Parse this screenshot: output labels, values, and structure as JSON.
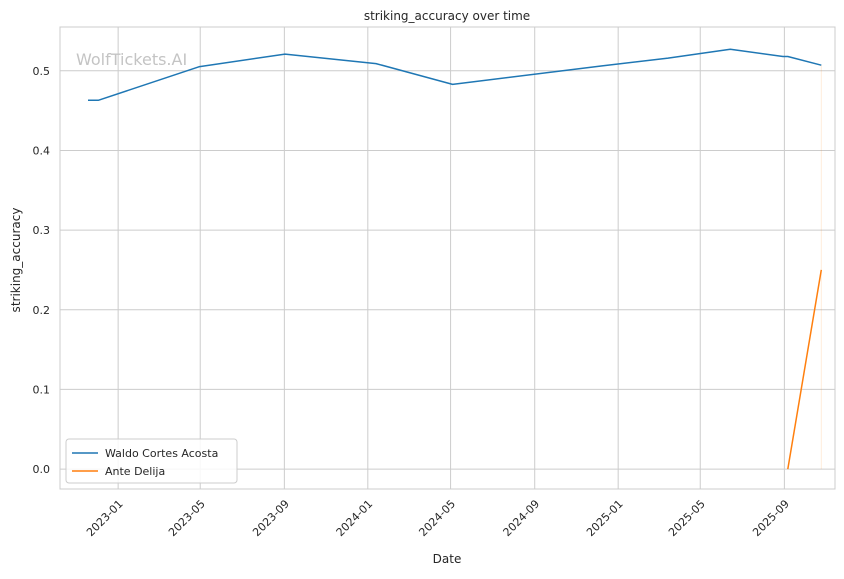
{
  "chart_data": {
    "type": "line",
    "title": "striking_accuracy over time",
    "xlabel": "Date",
    "ylabel": "striking_accuracy",
    "watermark": "WolfTickets.AI",
    "x_ticks": [
      "2023-01",
      "2023-05",
      "2023-09",
      "2024-01",
      "2024-05",
      "2024-09",
      "2025-01",
      "2025-05",
      "2025-09"
    ],
    "y_ticks": [
      "0.0",
      "0.1",
      "0.2",
      "0.3",
      "0.4",
      "0.5"
    ],
    "xlim": [
      "2022-10-08",
      "2025-11-14"
    ],
    "ylim": [
      -0.025,
      0.555
    ],
    "grid": true,
    "legend_position": "lower-left",
    "series": [
      {
        "name": "Waldo Cortes Acosta",
        "color": "#1f77b4",
        "points": [
          {
            "x": "2022-11-18",
            "y": 0.463
          },
          {
            "x": "2022-12-03",
            "y": 0.463
          },
          {
            "x": "2023-04-29",
            "y": 0.505
          },
          {
            "x": "2023-09-02",
            "y": 0.521
          },
          {
            "x": "2024-01-13",
            "y": 0.509
          },
          {
            "x": "2024-05-04",
            "y": 0.483
          },
          {
            "x": "2024-12-07",
            "y": 0.506
          },
          {
            "x": "2025-03-15",
            "y": 0.516
          },
          {
            "x": "2025-06-14",
            "y": 0.527
          },
          {
            "x": "2025-08-30",
            "y": 0.518
          },
          {
            "x": "2025-09-06",
            "y": 0.518
          },
          {
            "x": "2025-10-25",
            "y": 0.507
          }
        ]
      },
      {
        "name": "Ante Delija",
        "color": "#ff7f0e",
        "points": [
          {
            "x": "2025-09-06",
            "y": 0.0
          },
          {
            "x": "2025-10-25",
            "y": 0.25
          }
        ]
      }
    ]
  }
}
